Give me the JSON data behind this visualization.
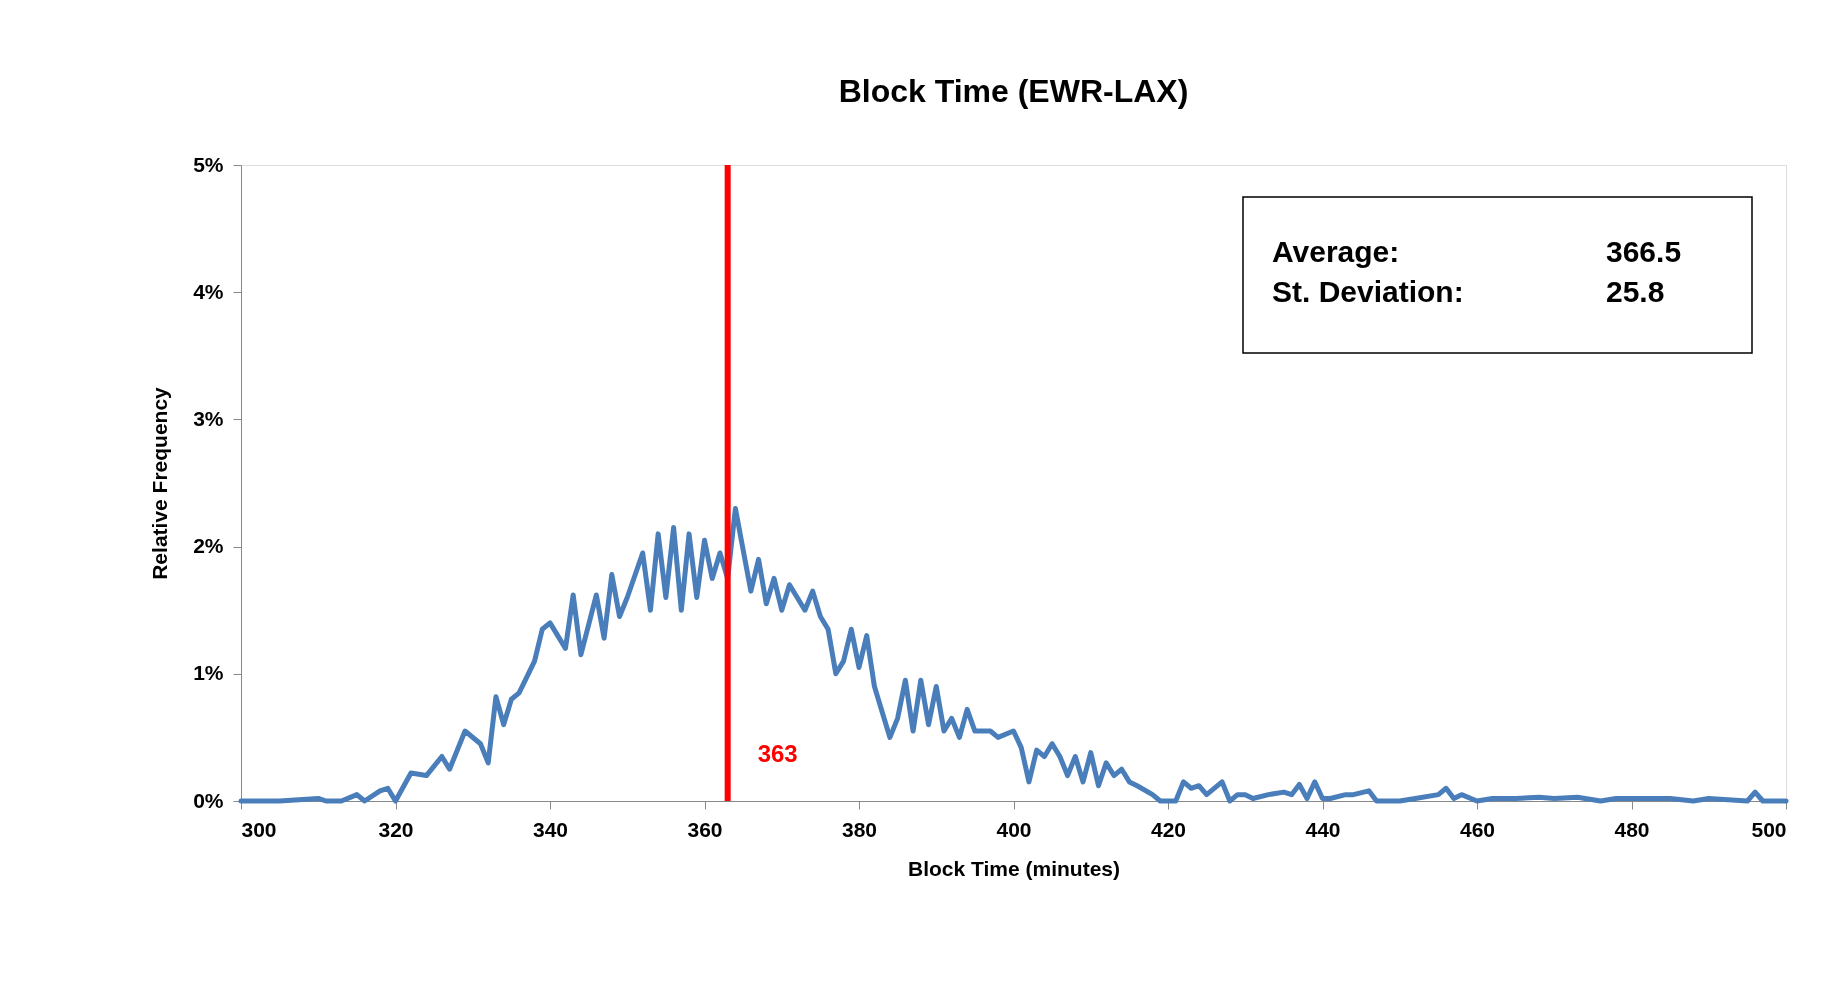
{
  "chart_data": {
    "type": "line",
    "title": "Block Time (EWR-LAX)",
    "xlabel": "Block Time (minutes)",
    "ylabel": "Relative Frequency",
    "xlim": [
      300,
      500
    ],
    "xticks": [
      300,
      320,
      340,
      360,
      380,
      400,
      420,
      440,
      460,
      480,
      500
    ],
    "ylim": [
      0,
      5
    ],
    "yticks": [
      {
        "value": 0,
        "label": "0%"
      },
      {
        "value": 1,
        "label": "1%"
      },
      {
        "value": 2,
        "label": "2%"
      },
      {
        "value": 3,
        "label": "3%"
      },
      {
        "value": 4,
        "label": "4%"
      },
      {
        "value": 5,
        "label": "5%"
      }
    ],
    "grid": false,
    "marker": "none",
    "line_style": "solid",
    "series": [
      {
        "color": "#4a7ebb",
        "x": [
          300,
          305,
          310,
          311,
          313,
          315,
          316,
          318,
          319,
          320,
          322,
          324,
          326,
          327,
          329,
          331,
          332,
          333,
          334,
          335,
          336,
          338,
          339,
          340,
          341,
          342,
          343,
          344,
          346,
          347,
          348,
          349,
          350,
          352,
          353,
          354,
          355,
          356,
          357,
          358,
          359,
          360,
          361,
          362,
          363,
          364,
          366,
          367,
          368,
          369,
          370,
          371,
          372,
          373,
          374,
          375,
          376,
          377,
          378,
          379,
          380,
          381,
          382,
          384,
          385,
          386,
          387,
          388,
          389,
          390,
          391,
          392,
          393,
          394,
          395,
          397,
          398,
          400,
          401,
          402,
          403,
          404,
          405,
          406,
          407,
          408,
          409,
          410,
          411,
          412,
          413,
          414,
          415,
          416,
          418,
          419,
          421,
          422,
          423,
          424,
          425,
          427,
          428,
          429,
          430,
          431,
          433,
          435,
          436,
          437,
          438,
          439,
          440,
          441,
          443,
          444,
          446,
          447,
          450,
          452,
          455,
          456,
          457,
          458,
          460,
          462,
          465,
          468,
          470,
          473,
          476,
          478,
          482,
          485,
          488,
          490,
          495,
          496,
          497,
          500
        ],
        "values": [
          0,
          0,
          0.02,
          0,
          0,
          0.05,
          0,
          0.08,
          0.1,
          0,
          0.22,
          0.2,
          0.35,
          0.25,
          0.55,
          0.45,
          0.3,
          0.82,
          0.6,
          0.8,
          0.85,
          1.1,
          1.35,
          1.4,
          1.3,
          1.2,
          1.62,
          1.15,
          1.62,
          1.28,
          1.78,
          1.45,
          1.6,
          1.95,
          1.5,
          2.1,
          1.6,
          2.15,
          1.5,
          2.1,
          1.6,
          2.05,
          1.75,
          1.95,
          1.75,
          2.3,
          1.65,
          1.9,
          1.55,
          1.75,
          1.5,
          1.7,
          1.6,
          1.5,
          1.65,
          1.45,
          1.35,
          1.0,
          1.1,
          1.35,
          1.05,
          1.3,
          0.9,
          0.5,
          0.65,
          0.95,
          0.55,
          0.95,
          0.6,
          0.9,
          0.55,
          0.65,
          0.5,
          0.72,
          0.55,
          0.55,
          0.5,
          0.55,
          0.42,
          0.15,
          0.4,
          0.35,
          0.45,
          0.35,
          0.2,
          0.35,
          0.15,
          0.38,
          0.12,
          0.3,
          0.2,
          0.25,
          0.15,
          0.12,
          0.05,
          0,
          0,
          0.15,
          0.1,
          0.12,
          0.05,
          0.15,
          0,
          0.05,
          0.05,
          0.02,
          0.05,
          0.07,
          0.05,
          0.13,
          0.02,
          0.15,
          0.02,
          0.02,
          0.05,
          0.05,
          0.08,
          0,
          0,
          0.02,
          0.05,
          0.1,
          0.02,
          0.05,
          0,
          0.02,
          0.02,
          0.03,
          0.02,
          0.03,
          0,
          0.02,
          0.02,
          0.02,
          0,
          0.02,
          0,
          0.07,
          0,
          0
        ]
      }
    ],
    "ref_lines": [
      {
        "axis": "x",
        "value": 363,
        "label": "363",
        "color": "#ff0000",
        "line_style": "solid"
      }
    ],
    "annotations": [
      "Average:",
      "366.5",
      "St. Deviation:",
      "25.8"
    ]
  }
}
